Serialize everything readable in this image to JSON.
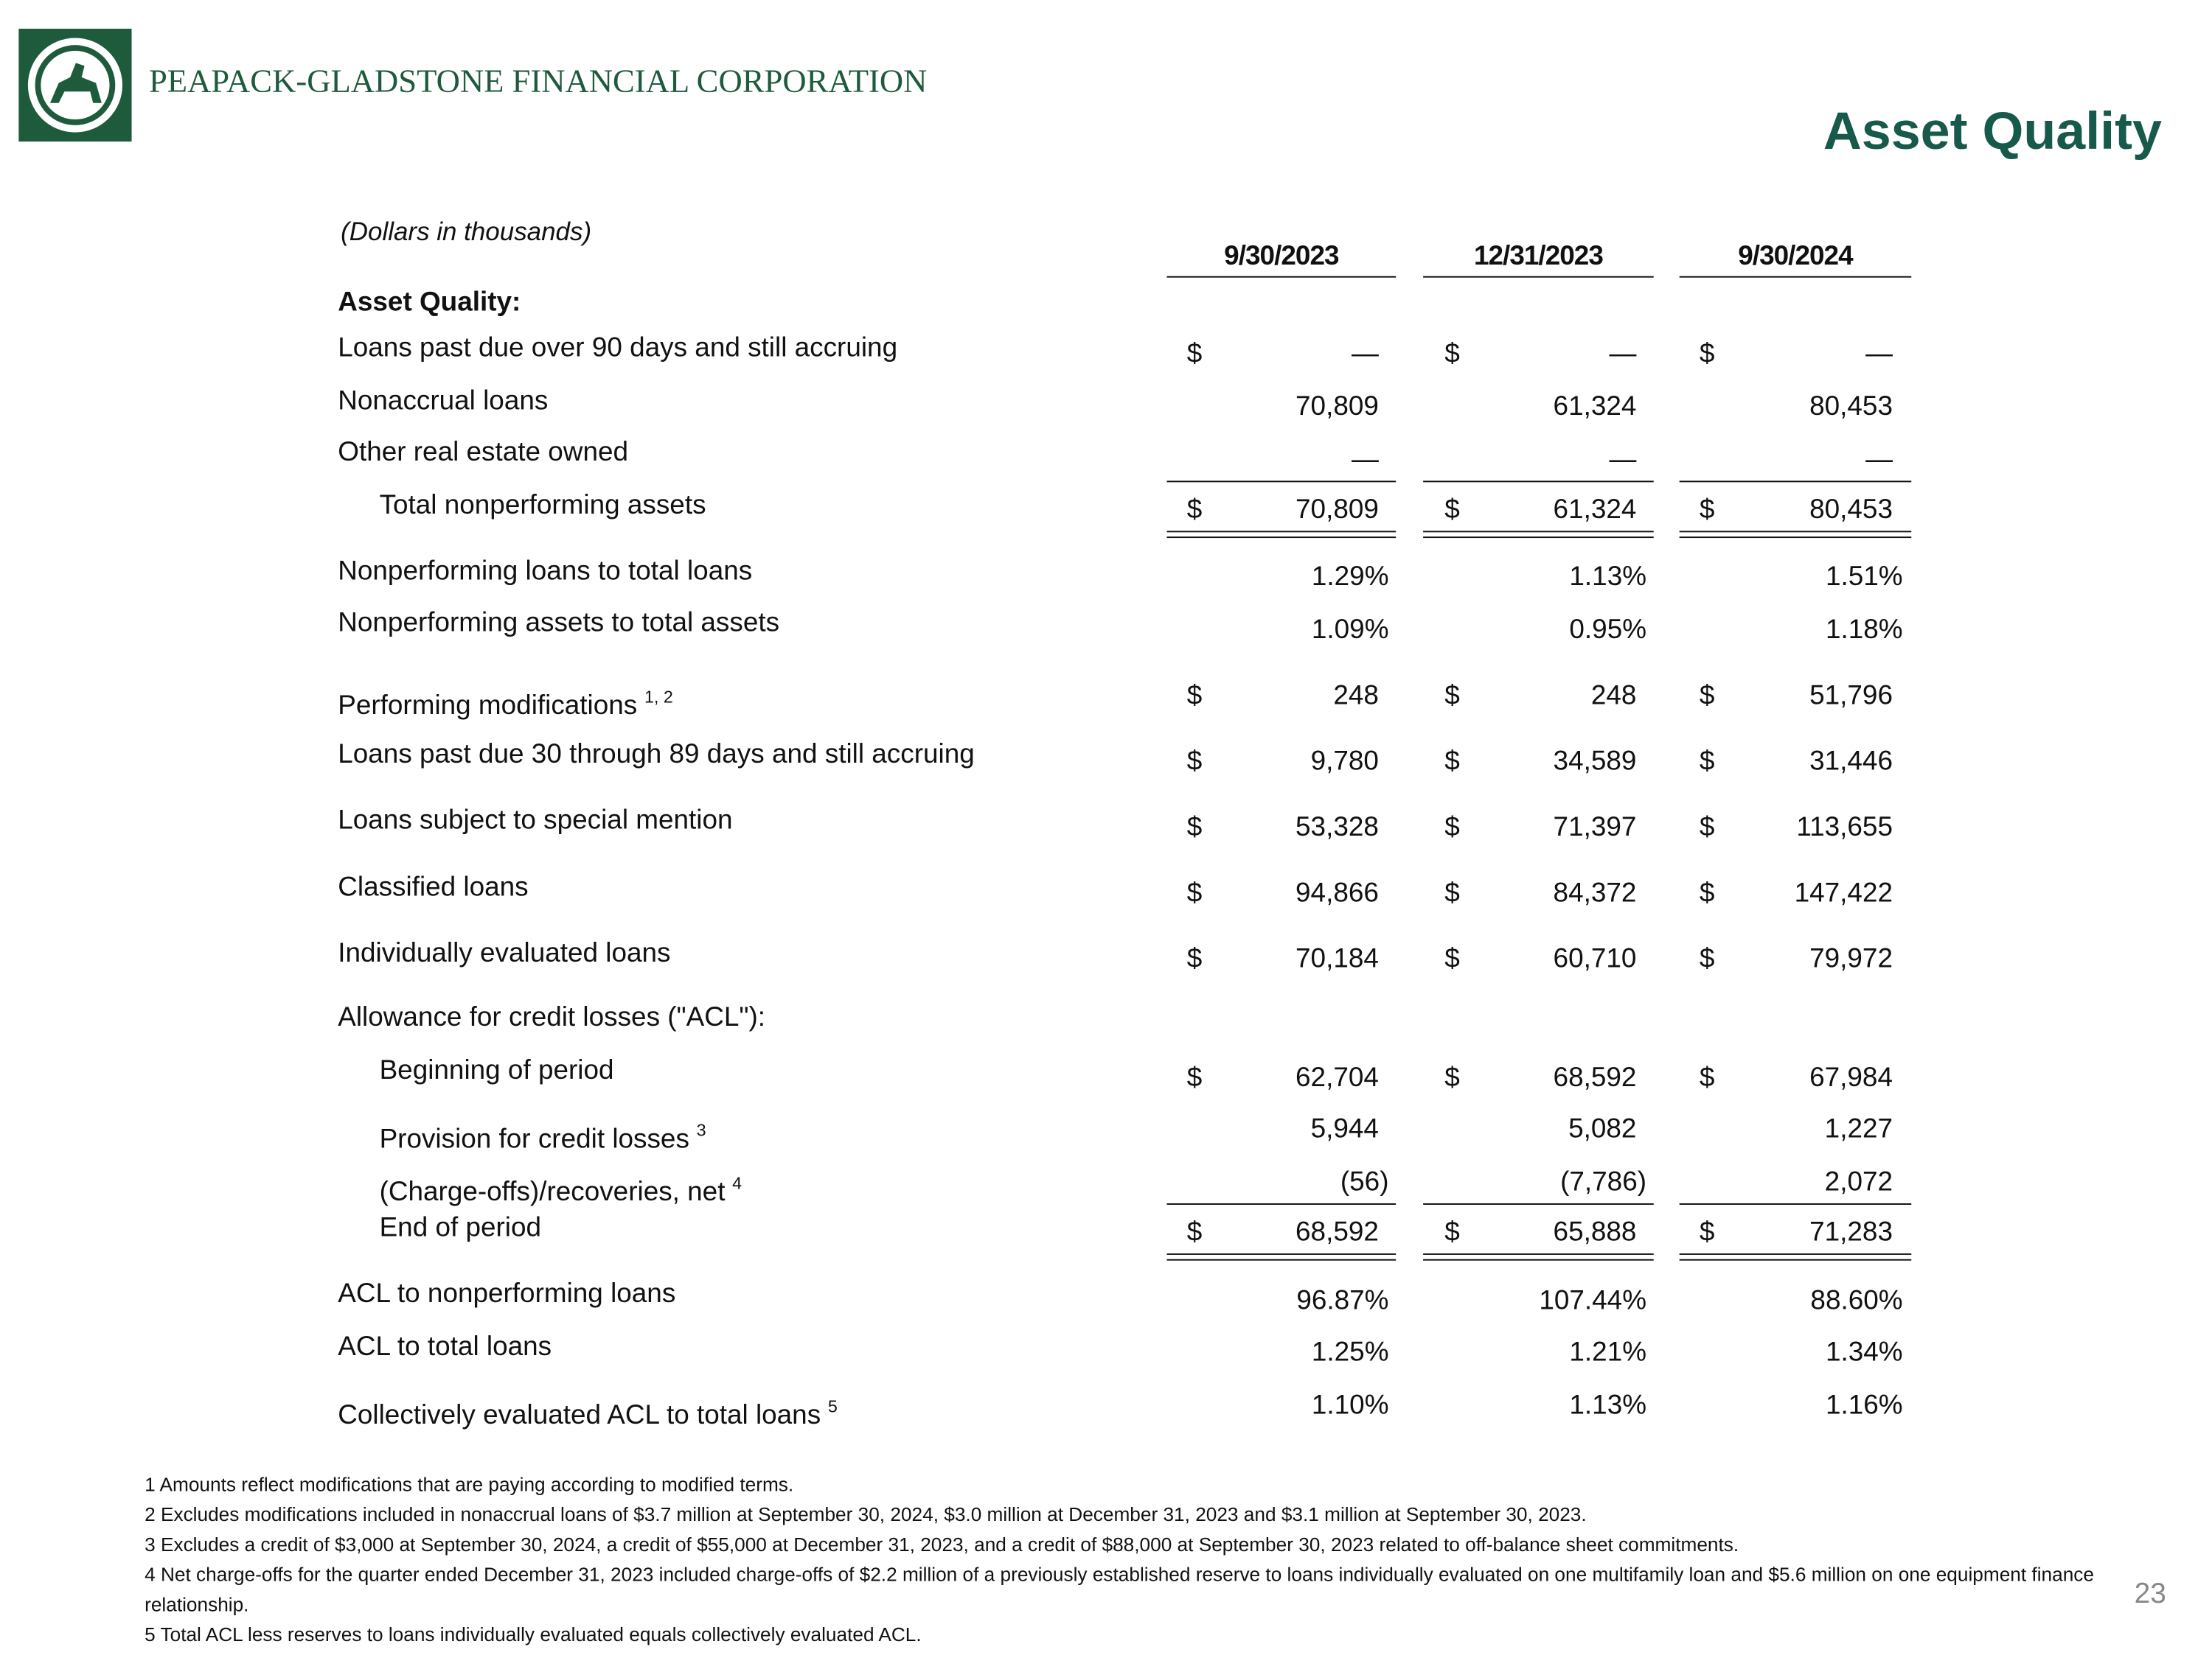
{
  "header": {
    "company": "PEAPACK-GLADSTONE FINANCIAL CORPORATION",
    "title": "Asset Quality",
    "page_number": "23"
  },
  "table": {
    "unit_note": "(Dollars in thousands)",
    "currency_symbol": "$",
    "columns": [
      "9/30/2023",
      "12/31/2023",
      "9/30/2024"
    ],
    "rows": [
      {
        "label": "Asset Quality:",
        "bold": true
      },
      {
        "label": "Loans past due over 90 days and still accruing",
        "currency": true,
        "values": [
          "—",
          "—",
          "—"
        ]
      },
      {
        "label": "Nonaccrual loans",
        "values": [
          "70,809",
          "61,324",
          "80,453"
        ]
      },
      {
        "label": "Other real estate owned",
        "values": [
          "—",
          "—",
          "—"
        ],
        "rule": "single"
      },
      {
        "label": "Total nonperforming assets",
        "indent": true,
        "currency": true,
        "values": [
          "70,809",
          "61,324",
          "80,453"
        ],
        "rule": "double"
      },
      {
        "label": "Nonperforming loans to total loans",
        "values": [
          "1.29%",
          "1.13%",
          "1.51%"
        ]
      },
      {
        "label": "Nonperforming assets to total assets",
        "values": [
          "1.09%",
          "0.95%",
          "1.18%"
        ]
      },
      {
        "label": "Performing modifications",
        "note": "1, 2",
        "currency": true,
        "values": [
          "248",
          "248",
          "51,796"
        ]
      },
      {
        "label": "Loans past due 30 through 89 days and still accruing",
        "currency": true,
        "values": [
          "9,780",
          "34,589",
          "31,446"
        ]
      },
      {
        "label": "Loans subject to special mention",
        "currency": true,
        "values": [
          "53,328",
          "71,397",
          "113,655"
        ]
      },
      {
        "label": "Classified loans",
        "currency": true,
        "values": [
          "94,866",
          "84,372",
          "147,422"
        ]
      },
      {
        "label": "Individually evaluated loans",
        "currency": true,
        "values": [
          "70,184",
          "60,710",
          "79,972"
        ]
      },
      {
        "label": "Allowance for credit losses (\"ACL\"):"
      },
      {
        "label": "Beginning of period",
        "indent": true,
        "currency": true,
        "values": [
          "62,704",
          "68,592",
          "67,984"
        ]
      },
      {
        "label": "Provision for credit losses",
        "note": "3",
        "indent": true,
        "values": [
          "5,944",
          "5,082",
          "1,227"
        ]
      },
      {
        "label": "(Charge-offs)/recoveries, net",
        "note": "4",
        "indent": true,
        "values": [
          "(56)",
          "(7,786)",
          "2,072"
        ],
        "rule": "single"
      },
      {
        "label": "End of period",
        "indent": true,
        "currency": true,
        "values": [
          "68,592",
          "65,888",
          "71,283"
        ],
        "rule": "double"
      },
      {
        "label": "ACL to nonperforming loans",
        "values": [
          "96.87%",
          "107.44%",
          "88.60%"
        ]
      },
      {
        "label": "ACL to total loans",
        "values": [
          "1.25%",
          "1.21%",
          "1.34%"
        ]
      },
      {
        "label": "Collectively evaluated ACL to total loans",
        "note": "5",
        "values": [
          "1.10%",
          "1.13%",
          "1.16%"
        ]
      }
    ]
  },
  "footnotes": [
    "1  Amounts reflect modifications that are paying according to modified terms.",
    "2  Excludes modifications included in nonaccrual loans of $3.7 million at September 30, 2024, $3.0 million at December 31, 2023 and $3.1 million at September 30, 2023.",
    "3  Excludes a credit of $3,000 at September 30, 2024, a credit of $55,000 at December 31, 2023, and a credit of $88,000 at September 30, 2023 related to off-balance sheet commitments.",
    "4  Net charge-offs for the quarter ended December 31, 2023 included charge-offs of $2.2 million of a previously established reserve to loans individually evaluated on one multifamily loan and $5.6 million on one equipment finance relationship.",
    "5  Total ACL less reserves to loans individually evaluated equals collectively evaluated ACL."
  ]
}
